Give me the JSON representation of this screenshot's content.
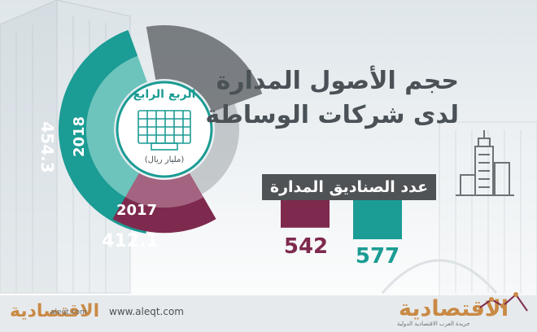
{
  "headline": {
    "line1": "حجم الأصول المدارة",
    "line2": "لدى شركات الوساطة"
  },
  "quarter_label": "الربع الرابع",
  "unit_label": "(مليار ريال)",
  "funds_label": "عدد الصناديق المدارة",
  "footer": {
    "website": "www.aleqt.com",
    "logo_text": "الاقتصادية",
    "logo_small_text": "الاقتصادية",
    "logo_small_caption": "aleqt.com",
    "logo_sub": "جريدة العرب الاقتصادية الدولية"
  },
  "colors": {
    "teal": "#1b9c94",
    "teal_light": "#6cc4bd",
    "maroon": "#7e2a4e",
    "maroon_light": "#a46380",
    "gray": "#565a5e",
    "logo": "#c98a46"
  },
  "chart_data": [
    {
      "type": "pie",
      "title": "حجم الأصول المدارة لدى شركات الوساطة",
      "subtitle": "الربع الرابع (مليار ريال)",
      "categories": [
        "2018",
        "2017"
      ],
      "values": [
        454.3,
        412.1
      ],
      "value_labels": [
        "454.3",
        "412.1"
      ]
    },
    {
      "type": "bar",
      "title": "عدد الصناديق المدارة",
      "categories": [
        "2017",
        "2018"
      ],
      "values": [
        542,
        577
      ],
      "value_labels": [
        "542",
        "577"
      ]
    }
  ]
}
